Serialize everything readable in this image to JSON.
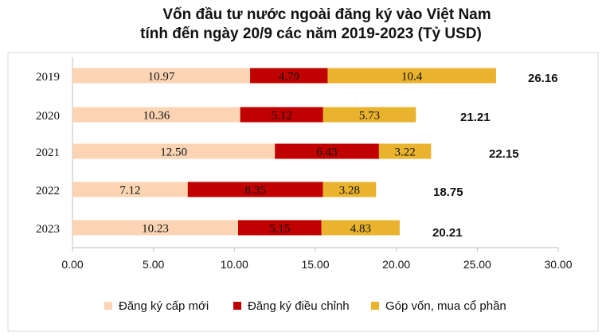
{
  "chart_data": {
    "type": "bar",
    "orientation": "horizontal",
    "stacked": true,
    "title_lines": [
      "Vốn đầu tư nước ngoài đăng ký vào Việt Nam",
      "tính đến ngày 20/9 các năm 2019-2023 (Tỷ USD)"
    ],
    "categories": [
      "2019",
      "2020",
      "2021",
      "2022",
      "2023"
    ],
    "series": [
      {
        "name": "Đăng ký cấp mới",
        "color": "#FBD4B4",
        "values": [
          10.97,
          10.36,
          12.5,
          7.12,
          10.23
        ],
        "labels": [
          "10.97",
          "10.36",
          "12.50",
          "7.12",
          "10.23"
        ]
      },
      {
        "name": "Đăng ký điều chỉnh",
        "color": "#C00000",
        "values": [
          4.79,
          5.12,
          6.43,
          8.35,
          5.15
        ],
        "labels": [
          "4.79",
          "5.12",
          "6.43",
          "8.35",
          "5.15"
        ]
      },
      {
        "name": "Góp vốn, mua cổ phần",
        "color": "#E9B32E",
        "values": [
          10.4,
          5.73,
          3.22,
          3.28,
          4.83
        ],
        "labels": [
          "10.4",
          "5.73",
          "3.22",
          "3.28",
          "4.83"
        ]
      }
    ],
    "totals": [
      "26.16",
      "21.21",
      "22.15",
      "18.75",
      "20.21"
    ],
    "xlim": [
      0,
      30
    ],
    "xticks": [
      "0.00",
      "5.00",
      "10.00",
      "15.00",
      "20.00",
      "25.00",
      "30.00"
    ],
    "xtick_values": [
      0,
      5,
      10,
      15,
      20,
      25,
      30
    ],
    "grid": false,
    "legend_position": "bottom"
  }
}
